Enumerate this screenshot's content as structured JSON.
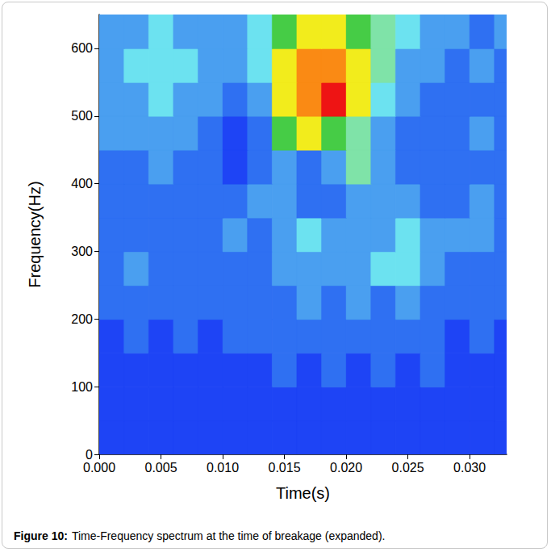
{
  "chart_data": {
    "type": "heatmap",
    "caption_label": "Figure 10:",
    "caption": "Time-Frequency spectrum at the time of breakage (expanded).",
    "x_label": "Time(s)",
    "y_label": "Frequency(Hz)",
    "xlim": [
      0,
      0.033
    ],
    "xticks": [
      {
        "value": 0,
        "label": "0.000"
      },
      {
        "value": 0.005,
        "label": "0.005"
      },
      {
        "value": 0.01,
        "label": "0.010"
      },
      {
        "value": 0.015,
        "label": "0.015"
      },
      {
        "value": 0.02,
        "label": "0.020"
      },
      {
        "value": 0.025,
        "label": "0.025"
      },
      {
        "value": 0.03,
        "label": "0.030"
      }
    ],
    "ylim": [
      0,
      650
    ],
    "yticks": [
      0,
      100,
      200,
      300,
      400,
      500,
      600
    ],
    "x": [
      0.001,
      0.003,
      0.005,
      0.007,
      0.009,
      0.011,
      0.013,
      0.015,
      0.017,
      0.019,
      0.021,
      0.023,
      0.025,
      0.027,
      0.029,
      0.031,
      0.033
    ],
    "y": [
      25,
      75,
      125,
      175,
      225,
      275,
      325,
      375,
      425,
      475,
      525,
      575,
      625
    ],
    "values": [
      [
        0,
        0,
        0,
        0,
        0,
        0,
        0,
        0,
        0,
        0,
        0,
        0,
        0,
        0,
        0,
        0,
        0
      ],
      [
        0,
        0,
        0,
        0,
        0,
        0,
        0,
        0,
        0,
        0,
        0,
        0,
        0,
        0,
        0,
        0,
        0
      ],
      [
        0,
        0,
        0,
        0,
        0,
        0,
        0,
        1,
        0,
        1,
        0,
        1,
        0,
        1,
        0,
        0,
        0
      ],
      [
        0,
        1,
        0,
        1,
        0,
        1,
        1,
        1,
        1,
        1,
        1,
        1,
        1,
        1,
        0,
        1,
        0
      ],
      [
        1,
        1,
        1,
        1,
        1,
        1,
        1,
        1,
        2,
        1,
        2,
        1,
        2,
        1,
        1,
        1,
        1
      ],
      [
        1,
        2,
        1,
        1,
        1,
        1,
        1,
        2,
        2,
        2,
        2,
        3,
        3,
        2,
        1,
        1,
        1
      ],
      [
        1,
        1,
        1,
        1,
        1,
        2,
        1,
        2,
        3,
        2,
        2,
        2,
        3,
        2,
        2,
        2,
        1
      ],
      [
        1,
        1,
        1,
        1,
        1,
        1,
        2,
        2,
        1,
        1,
        2,
        2,
        2,
        1,
        1,
        2,
        1
      ],
      [
        1,
        1,
        2,
        1,
        1,
        0,
        1,
        2,
        1,
        2,
        4,
        2,
        1,
        1,
        1,
        1,
        1
      ],
      [
        2,
        2,
        2,
        2,
        1,
        0,
        1,
        5,
        6,
        5,
        4,
        2,
        1,
        1,
        1,
        2,
        1
      ],
      [
        2,
        2,
        3,
        2,
        2,
        1,
        2,
        6,
        7,
        8,
        6,
        3,
        2,
        1,
        1,
        1,
        1
      ],
      [
        2,
        3,
        3,
        3,
        2,
        2,
        3,
        6,
        7,
        7,
        6,
        4,
        2,
        2,
        1,
        2,
        1
      ],
      [
        2,
        2,
        3,
        2,
        2,
        2,
        3,
        5,
        6,
        6,
        5,
        4,
        3,
        2,
        2,
        1,
        2
      ]
    ],
    "color_range": [
      0,
      8
    ],
    "colors": [
      "#1e44f5",
      "#2f70f2",
      "#4a9ff0",
      "#6ce2f0",
      "#7fe3a8",
      "#46cc46",
      "#f2ec1c",
      "#fa8a14",
      "#ee1414"
    ],
    "grid": false
  }
}
